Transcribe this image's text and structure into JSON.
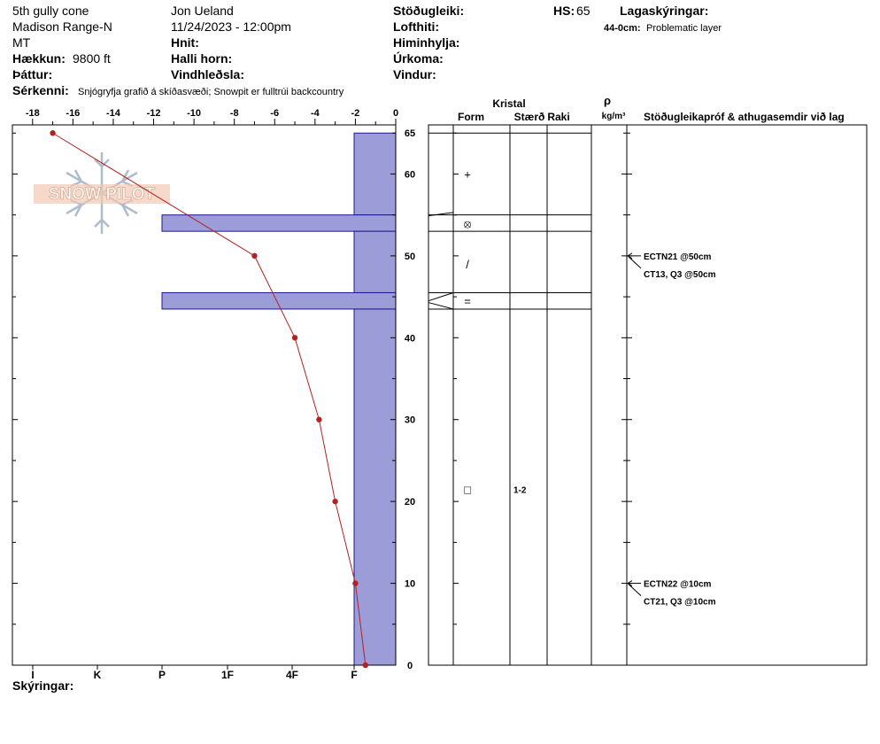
{
  "header": {
    "location": "5th gully cone",
    "range": "Madison Range-N",
    "state": "MT",
    "elevation_label": "Hækkun:",
    "elevation_value": "9800 ft",
    "aspect_label": "Þáttur:",
    "remarks_label": "Sérkenni:",
    "remarks_value": "Snjógryfja grafið á skíðasvæði; Snowpit er fulltrúi backcountry",
    "observer": "Jon Ueland",
    "datetime": "11/24/2023 - 12:00pm",
    "coords_label": "Hnit:",
    "slope_label": "Halli horn:",
    "wind_loading_label": "Vindhleðsla:",
    "stability_label": "Stöðugleiki:",
    "air_temp_label": "Lofthiti:",
    "sky_label": "Himinhylja:",
    "precip_label": "Úrkoma:",
    "wind_label": "Vindur:",
    "hs_label": "HS:",
    "hs_value": "65",
    "layer_notes_label": "Lagaskýringar:",
    "layer_note_depth": "44-0cm:",
    "layer_note_text": "Problematic layer"
  },
  "logo_text": "SNOW PILOT",
  "footer": {
    "legend_label": "Skýringar:"
  },
  "table": {
    "crystal_label": "Kristal",
    "form_label": "Form",
    "size_label": "Stærð",
    "moisture_label": "Raki",
    "rho_label": "ρ",
    "density_unit": "kg/m³",
    "tests_label": "Stöðugleikapróf & athugasemdir við lag",
    "forms": [
      {
        "depth": 60,
        "symbol": "+"
      },
      {
        "depth": 54,
        "symbol": "⦻"
      },
      {
        "depth": 49,
        "symbol": "/"
      },
      {
        "depth": 44.5,
        "symbol": "="
      },
      {
        "depth": 21.5,
        "symbol": "□"
      }
    ],
    "sizes": [
      {
        "depth": 21.5,
        "text": "1-2"
      }
    ],
    "tests": [
      {
        "depth": 50,
        "lines": [
          "ECTN21 @50cm",
          "CT13, Q3 @50cm"
        ]
      },
      {
        "depth": 10,
        "lines": [
          "ECTN22 @10cm",
          "CT21, Q3 @10cm"
        ]
      }
    ]
  },
  "chart_data": {
    "type": "snow profile",
    "temp_axis": {
      "ticks": [
        -18,
        -16,
        -14,
        -12,
        -10,
        -8,
        -6,
        -4,
        -2,
        0
      ],
      "range": [
        -19,
        0
      ]
    },
    "depth_axis": {
      "range": [
        0,
        66
      ],
      "ticks": [
        0,
        10,
        20,
        30,
        40,
        50,
        60,
        65
      ]
    },
    "hardness_labels": [
      "I",
      "K",
      "P",
      "1F",
      "4F",
      "F"
    ],
    "temperature_profile": [
      {
        "depth": 65,
        "temp": -17
      },
      {
        "depth": 50,
        "temp": -7
      },
      {
        "depth": 40,
        "temp": -5
      },
      {
        "depth": 30,
        "temp": -3.8
      },
      {
        "depth": 20,
        "temp": -3
      },
      {
        "depth": 10,
        "temp": -2
      },
      {
        "depth": 0,
        "temp": -1.5
      }
    ],
    "layers": [
      {
        "top": 65,
        "bottom": 55,
        "hardness": "F"
      },
      {
        "top": 55,
        "bottom": 53,
        "hardness": "P"
      },
      {
        "top": 53,
        "bottom": 45.5,
        "hardness": "F"
      },
      {
        "top": 45.5,
        "bottom": 43.5,
        "hardness": "P"
      },
      {
        "top": 43.5,
        "bottom": 0,
        "hardness": "F"
      }
    ],
    "colors": {
      "layer_fill": "#9c9cd8",
      "layer_stroke": "#1a1a8a",
      "temp_line": "#b22222"
    }
  }
}
